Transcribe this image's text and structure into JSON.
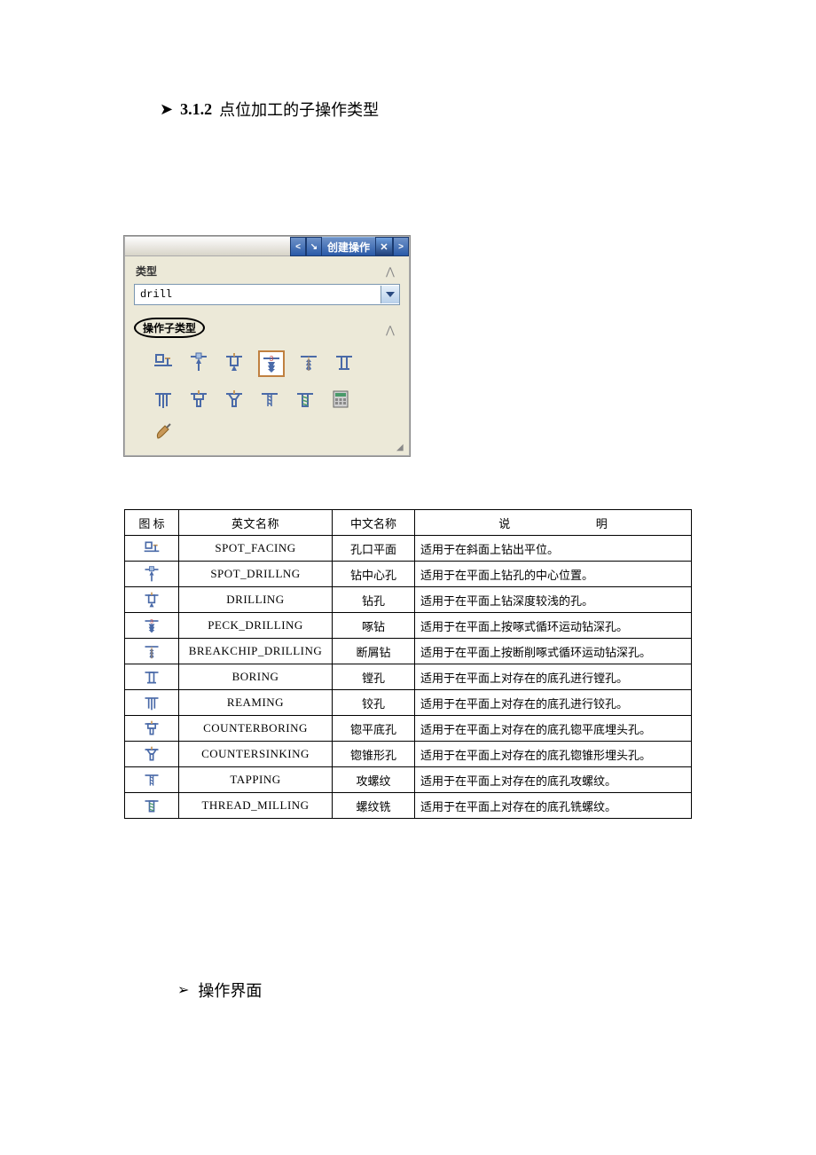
{
  "heading": {
    "bullet": "➤",
    "number": "3.1.2",
    "text": "点位加工的子操作类型"
  },
  "dialog": {
    "title": "创建操作",
    "type_label": "类型",
    "type_value": "drill",
    "subtype_label": "操作子类型",
    "colors": {
      "panel_bg": "#ece9d8",
      "titlebar_grad_top": "#6e92c8",
      "titlebar_grad_bottom": "#2a5aa8",
      "dropdown_border": "#7a96b0",
      "selected_border": "#c08040"
    },
    "icons": [
      {
        "name": "spot-facing"
      },
      {
        "name": "spot-drilling"
      },
      {
        "name": "drilling"
      },
      {
        "name": "peck-drilling",
        "selected": true
      },
      {
        "name": "breakchip-drilling"
      },
      {
        "name": "boring"
      },
      {
        "name": "reaming"
      },
      {
        "name": "counterboring"
      },
      {
        "name": "countersinking"
      },
      {
        "name": "tapping"
      },
      {
        "name": "thread-milling"
      },
      {
        "name": "calc"
      },
      {
        "name": "probe"
      }
    ]
  },
  "table": {
    "headers": {
      "icon": "图 标",
      "en": "英文名称",
      "cn": "中文名称",
      "desc1": "说",
      "desc2": "明"
    },
    "rows": [
      {
        "icon": "spot-facing",
        "en": "SPOT_FACING",
        "cn": "孔口平面",
        "desc": "适用于在斜面上钻出平位。"
      },
      {
        "icon": "spot-drilling",
        "en": "SPOT_DRILLNG",
        "cn": "钻中心孔",
        "desc": "适用于在平面上钻孔的中心位置。"
      },
      {
        "icon": "drilling",
        "en": "DRILLING",
        "cn": "钻孔",
        "desc": "适用于在平面上钻深度较浅的孔。"
      },
      {
        "icon": "peck-drilling",
        "en": "PECK_DRILLING",
        "cn": "啄钻",
        "desc": "适用于在平面上按啄式循环运动钻深孔。"
      },
      {
        "icon": "breakchip-drilling",
        "en": "BREAKCHIP_DRILLING",
        "cn": "断屑钻",
        "desc": "适用于在平面上按断削啄式循环运动钻深孔。"
      },
      {
        "icon": "boring",
        "en": "BORING",
        "cn": "镗孔",
        "desc": "适用于在平面上对存在的底孔进行镗孔。"
      },
      {
        "icon": "reaming",
        "en": "REAMING",
        "cn": "铰孔",
        "desc": "适用于在平面上对存在的底孔进行铰孔。"
      },
      {
        "icon": "counterboring",
        "en": "COUNTERBORING",
        "cn": "锪平底孔",
        "desc": "适用于在平面上对存在的底孔锪平底埋头孔。"
      },
      {
        "icon": "countersinking",
        "en": "COUNTERSINKING",
        "cn": "锪锥形孔",
        "desc": "适用于在平面上对存在的底孔锪锥形埋头孔。"
      },
      {
        "icon": "tapping",
        "en": "TAPPING",
        "cn": "攻螺纹",
        "desc": "适用于在平面上对存在的底孔攻螺纹。"
      },
      {
        "icon": "thread-milling",
        "en": "THREAD_MILLING",
        "cn": "螺纹铣",
        "desc": "适用于在平面上对存在的底孔铣螺纹。"
      }
    ]
  },
  "heading2": {
    "bullet": "➢",
    "text": "操作界面"
  },
  "icon_colors": {
    "base": "#4a6aa8",
    "accent": "#c89858",
    "green": "#4a9a6a",
    "red": "#c04040",
    "gray": "#888888"
  }
}
